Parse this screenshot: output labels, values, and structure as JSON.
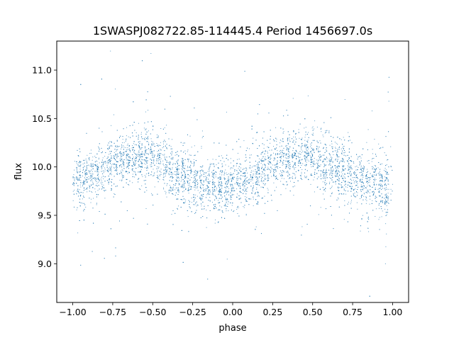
{
  "chart_data": {
    "type": "scatter",
    "title": "1SWASPJ082722.85-114445.4 Period 1456697.0s",
    "xlabel": "phase",
    "ylabel": "flux",
    "xlim": [
      -1.1,
      1.1
    ],
    "ylim": [
      8.6,
      11.3
    ],
    "xticks": [
      -1.0,
      -0.75,
      -0.5,
      -0.25,
      0.0,
      0.25,
      0.5,
      0.75,
      1.0
    ],
    "xtick_labels": [
      "−1.00",
      "−0.75",
      "−0.50",
      "−0.25",
      "0.00",
      "0.25",
      "0.50",
      "0.75",
      "1.00"
    ],
    "yticks": [
      9.0,
      9.5,
      10.0,
      10.5,
      11.0
    ],
    "ytick_labels": [
      "9.0",
      "9.5",
      "10.0",
      "10.5",
      "11.0"
    ],
    "marker_color": "#1f77b4",
    "grid": false,
    "series": [
      {
        "x": [
          -1.0,
          -0.95,
          -0.9,
          -0.85,
          -0.8,
          -0.75,
          -0.7,
          -0.65,
          -0.6,
          -0.55,
          -0.5,
          -0.45,
          -0.4,
          -0.35,
          -0.3,
          -0.25,
          -0.2,
          -0.15,
          -0.1,
          -0.05,
          0.0,
          0.05,
          0.1,
          0.15,
          0.2,
          0.25,
          0.3,
          0.35,
          0.4,
          0.45,
          0.5,
          0.55,
          0.6,
          0.65,
          0.7,
          0.75,
          0.8,
          0.85,
          0.9,
          0.95,
          1.0
        ],
        "y": [
          9.82,
          9.86,
          9.9,
          9.95,
          9.99,
          10.03,
          10.07,
          10.1,
          10.12,
          10.12,
          10.1,
          10.06,
          9.99,
          9.93,
          9.88,
          9.84,
          9.81,
          9.79,
          9.78,
          9.79,
          9.8,
          9.83,
          9.87,
          9.92,
          9.97,
          10.02,
          10.06,
          10.09,
          10.11,
          10.12,
          10.11,
          10.07,
          10.02,
          9.97,
          9.93,
          9.89,
          9.86,
          9.84,
          9.82,
          9.81,
          9.82
        ]
      }
    ]
  }
}
